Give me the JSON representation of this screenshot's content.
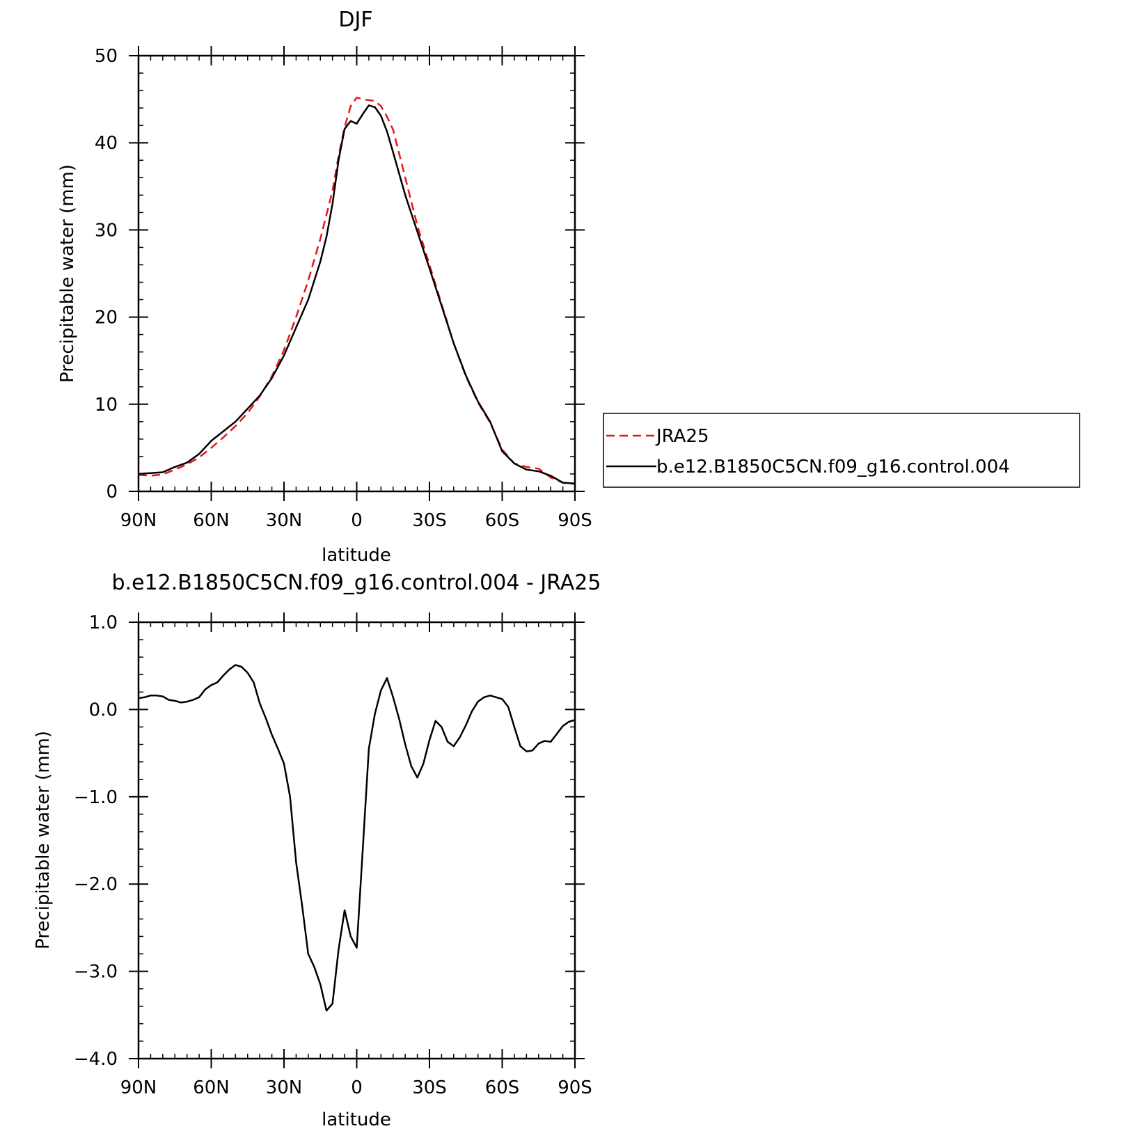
{
  "colors": {
    "jra": "#e8141c",
    "model": "#000000",
    "background": "#ffffff"
  },
  "legend": {
    "entries": [
      {
        "label": "JRA25",
        "style": "dashed",
        "color": "#e8141c"
      },
      {
        "label": "b.e12.B1850C5CN.f09_g16.control.004",
        "style": "solid",
        "color": "#000000"
      }
    ]
  },
  "chart_data": [
    {
      "type": "line",
      "title": "DJF",
      "xlabel": "latitude",
      "ylabel": "Precipitable water (mm)",
      "xlim": [
        90,
        -90
      ],
      "ylim": [
        0,
        50
      ],
      "x_ticks": [
        {
          "value": 90,
          "label": "90N"
        },
        {
          "value": 60,
          "label": "60N"
        },
        {
          "value": 30,
          "label": "30N"
        },
        {
          "value": 0,
          "label": "0"
        },
        {
          "value": -30,
          "label": "30S"
        },
        {
          "value": -60,
          "label": "60S"
        },
        {
          "value": -90,
          "label": "90S"
        }
      ],
      "y_ticks": [
        {
          "value": 0,
          "label": "0"
        },
        {
          "value": 10,
          "label": "10"
        },
        {
          "value": 20,
          "label": "20"
        },
        {
          "value": 30,
          "label": "30"
        },
        {
          "value": 40,
          "label": "40"
        },
        {
          "value": 50,
          "label": "50"
        }
      ],
      "grid": false,
      "legend_position": "right",
      "series": [
        {
          "name": "JRA25",
          "style": "dashed",
          "x": [
            90,
            87.5,
            85,
            80,
            75,
            70,
            65,
            60,
            55,
            50,
            45,
            40,
            35,
            30,
            25,
            20,
            15,
            10,
            7.5,
            5,
            2.5,
            0,
            -2.5,
            -5,
            -7.5,
            -10,
            -12.5,
            -15,
            -20,
            -25,
            -30,
            -35,
            -40,
            -45,
            -50,
            -55,
            -60,
            -65,
            -70,
            -75,
            -80,
            -85,
            -90
          ],
          "y": [
            1.9,
            1.85,
            1.8,
            1.95,
            2.5,
            3.1,
            3.9,
            5.0,
            6.2,
            7.5,
            9.0,
            10.9,
            13.2,
            16.2,
            20.0,
            24.2,
            29.0,
            34.5,
            38.5,
            41.8,
            44.2,
            45.2,
            45.0,
            44.9,
            44.8,
            44.2,
            43.0,
            41.5,
            36.0,
            30.5,
            26.0,
            21.5,
            17.0,
            13.2,
            10.2,
            7.9,
            4.8,
            3.2,
            2.8,
            2.6,
            1.6,
            1.0,
            0.85
          ]
        },
        {
          "name": "b.e12.B1850C5CN.f09_g16.control.004",
          "style": "solid",
          "x": [
            90,
            87.5,
            85,
            80,
            75,
            70,
            65,
            60,
            55,
            50,
            45,
            40,
            35,
            30,
            25,
            20,
            15,
            12.5,
            10,
            7.5,
            5,
            2.5,
            0,
            -2.5,
            -5,
            -7.5,
            -10,
            -12.5,
            -15,
            -20,
            -25,
            -30,
            -35,
            -40,
            -45,
            -50,
            -55,
            -60,
            -65,
            -70,
            -75,
            -80,
            -85,
            -90
          ],
          "y": [
            2.0,
            2.05,
            2.1,
            2.2,
            2.8,
            3.3,
            4.3,
            5.8,
            6.9,
            8.0,
            9.5,
            11.0,
            13.0,
            15.6,
            18.8,
            22.0,
            26.4,
            29.2,
            33.0,
            38.0,
            41.6,
            42.5,
            42.2,
            43.3,
            44.3,
            44.1,
            43.1,
            41.3,
            38.9,
            34.0,
            29.8,
            25.6,
            21.3,
            17.0,
            13.3,
            10.3,
            8.0,
            4.6,
            3.2,
            2.5,
            2.3,
            1.8,
            1.0,
            0.9
          ]
        }
      ]
    },
    {
      "type": "line",
      "title": "b.e12.B1850C5CN.f09_g16.control.004 - JRA25",
      "xlabel": "latitude",
      "ylabel": "Precipitable water (mm)",
      "xlim": [
        90,
        -90
      ],
      "ylim": [
        -4.0,
        1.0
      ],
      "x_ticks": [
        {
          "value": 90,
          "label": "90N"
        },
        {
          "value": 60,
          "label": "60N"
        },
        {
          "value": 30,
          "label": "30N"
        },
        {
          "value": 0,
          "label": "0"
        },
        {
          "value": -30,
          "label": "30S"
        },
        {
          "value": -60,
          "label": "60S"
        },
        {
          "value": -90,
          "label": "90S"
        }
      ],
      "y_ticks": [
        {
          "value": 1.0,
          "label": "1.0"
        },
        {
          "value": 0.0,
          "label": "0.0"
        },
        {
          "value": -1.0,
          "label": "−1.0"
        },
        {
          "value": -2.0,
          "label": "−2.0"
        },
        {
          "value": -3.0,
          "label": "−3.0"
        },
        {
          "value": -4.0,
          "label": "−4.0"
        }
      ],
      "grid": false,
      "series": [
        {
          "style": "solid",
          "x": [
            90,
            87.5,
            85,
            82.5,
            80,
            77.5,
            75,
            72.5,
            70,
            67.5,
            65,
            62.5,
            60,
            57.5,
            55,
            52.5,
            50,
            47.5,
            45,
            42.5,
            40,
            37.5,
            35,
            32.5,
            30,
            27.5,
            25,
            22.5,
            20,
            17.5,
            15,
            12.5,
            10,
            7.5,
            5,
            2.5,
            0,
            -2.5,
            -5,
            -7.5,
            -10,
            -12.5,
            -15,
            -17.5,
            -20,
            -22.5,
            -25,
            -27.5,
            -30,
            -32.5,
            -35,
            -37.5,
            -40,
            -42.5,
            -45,
            -47.5,
            -50,
            -52.5,
            -55,
            -57.5,
            -60,
            -62.5,
            -65,
            -67.5,
            -70,
            -72.5,
            -75,
            -77.5,
            -80,
            -82.5,
            -85,
            -87.5,
            -90
          ],
          "y": [
            0.13,
            0.14,
            0.16,
            0.16,
            0.15,
            0.11,
            0.1,
            0.08,
            0.09,
            0.11,
            0.14,
            0.23,
            0.28,
            0.31,
            0.39,
            0.46,
            0.51,
            0.49,
            0.42,
            0.31,
            0.07,
            -0.1,
            -0.29,
            -0.45,
            -0.62,
            -1.0,
            -1.75,
            -2.25,
            -2.8,
            -2.95,
            -3.15,
            -3.45,
            -3.37,
            -2.75,
            -2.3,
            -2.6,
            -2.73,
            -1.6,
            -0.45,
            -0.05,
            0.22,
            0.36,
            0.14,
            -0.11,
            -0.4,
            -0.65,
            -0.78,
            -0.62,
            -0.35,
            -0.13,
            -0.2,
            -0.37,
            -0.42,
            -0.32,
            -0.18,
            -0.02,
            0.09,
            0.14,
            0.16,
            0.14,
            0.12,
            0.03,
            -0.2,
            -0.42,
            -0.48,
            -0.47,
            -0.39,
            -0.36,
            -0.37,
            -0.28,
            -0.19,
            -0.14,
            -0.12
          ]
        }
      ]
    }
  ]
}
